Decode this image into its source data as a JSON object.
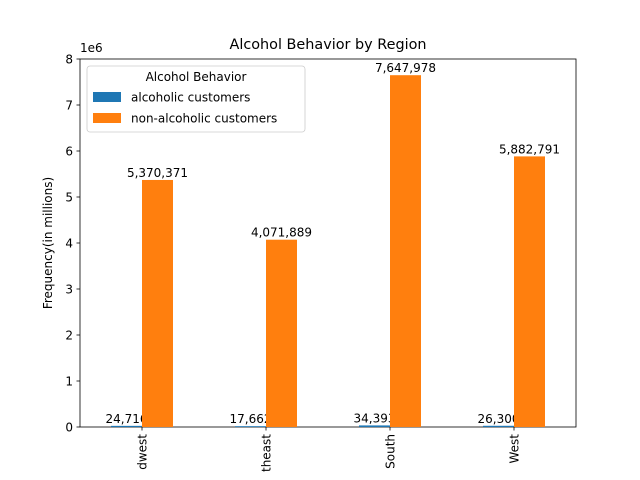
{
  "chart_data": {
    "type": "bar",
    "title": "Alcohol Behavior by Region",
    "xlabel": "",
    "ylabel": "Frequency(in millions)",
    "y_offset_label": "1e6",
    "ylim": [
      0,
      8000000
    ],
    "yticks": [
      0,
      1000000,
      2000000,
      3000000,
      4000000,
      5000000,
      6000000,
      7000000,
      8000000
    ],
    "ytick_labels": [
      "0",
      "1",
      "2",
      "3",
      "4",
      "5",
      "6",
      "7",
      "8"
    ],
    "categories": [
      "Midwest",
      "Northeast",
      "South",
      "West"
    ],
    "category_tick_labels": [
      "dwest",
      "theast",
      "South",
      "West"
    ],
    "legend": {
      "title": "Alcohol Behavior",
      "placement": "top-left"
    },
    "grid": false,
    "series": [
      {
        "name": "alcoholic customers",
        "color": "#1f77b4",
        "values": [
          24716,
          17662,
          34393,
          26300
        ],
        "labels": [
          "24,716",
          "17,662",
          "34,393",
          "26,300"
        ]
      },
      {
        "name": "non-alcoholic customers",
        "color": "#ff7f0e",
        "values": [
          5370371,
          4071889,
          7647978,
          5882791
        ],
        "labels": [
          "5,370,371",
          "4,071,889",
          "7,647,978",
          "5,882,791"
        ]
      }
    ]
  }
}
